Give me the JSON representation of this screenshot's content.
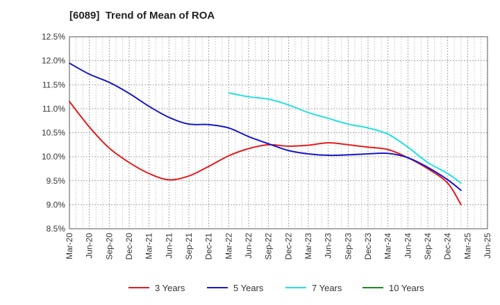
{
  "chart_data": {
    "type": "line",
    "title": "[6089]  Trend of Mean of ROA",
    "xlabel": "",
    "ylabel": "",
    "x_ticks": [
      "Mar-20",
      "Jun-20",
      "Sep-20",
      "Dec-20",
      "Mar-21",
      "Jun-21",
      "Sep-21",
      "Dec-21",
      "Mar-22",
      "Jun-22",
      "Sep-22",
      "Dec-22",
      "Mar-23",
      "Jun-23",
      "Sep-23",
      "Dec-23",
      "Mar-24",
      "Jun-24",
      "Sep-24",
      "Dec-24",
      "Mar-25",
      "Jun-25"
    ],
    "y_ticks": [
      "8.5%",
      "9.0%",
      "9.5%",
      "10.0%",
      "10.5%",
      "11.0%",
      "11.5%",
      "12.0%",
      "12.5%"
    ],
    "ylim": [
      8.5,
      12.5
    ],
    "grid": true,
    "legend_position": "bottom",
    "series": [
      {
        "name": "3 Years",
        "color": "#e31a1c",
        "points": [
          [
            0,
            11.15
          ],
          [
            1,
            10.62
          ],
          [
            2,
            10.18
          ],
          [
            3,
            9.88
          ],
          [
            4,
            9.65
          ],
          [
            5,
            9.52
          ],
          [
            6,
            9.6
          ],
          [
            7,
            9.8
          ],
          [
            8,
            10.02
          ],
          [
            9,
            10.17
          ],
          [
            10,
            10.25
          ],
          [
            11,
            10.22
          ],
          [
            12,
            10.24
          ],
          [
            13,
            10.29
          ],
          [
            14,
            10.25
          ],
          [
            15,
            10.2
          ],
          [
            16,
            10.15
          ],
          [
            17,
            9.98
          ],
          [
            18,
            9.75
          ],
          [
            19,
            9.45
          ],
          [
            19.67,
            9.0
          ]
        ]
      },
      {
        "name": "5 Years",
        "color": "#1515c8",
        "points": [
          [
            0,
            11.95
          ],
          [
            1,
            11.72
          ],
          [
            2,
            11.55
          ],
          [
            3,
            11.32
          ],
          [
            4,
            11.05
          ],
          [
            5,
            10.82
          ],
          [
            6,
            10.68
          ],
          [
            7,
            10.67
          ],
          [
            8,
            10.6
          ],
          [
            9,
            10.42
          ],
          [
            10,
            10.27
          ],
          [
            11,
            10.13
          ],
          [
            12,
            10.06
          ],
          [
            13,
            10.03
          ],
          [
            14,
            10.04
          ],
          [
            15,
            10.06
          ],
          [
            16,
            10.07
          ],
          [
            17,
            9.98
          ],
          [
            18,
            9.78
          ],
          [
            19,
            9.52
          ],
          [
            19.67,
            9.3
          ]
        ]
      },
      {
        "name": "7 Years",
        "color": "#22e0e0",
        "points": [
          [
            8,
            11.33
          ],
          [
            9,
            11.25
          ],
          [
            10,
            11.2
          ],
          [
            11,
            11.08
          ],
          [
            12,
            10.92
          ],
          [
            13,
            10.8
          ],
          [
            14,
            10.68
          ],
          [
            15,
            10.6
          ],
          [
            16,
            10.47
          ],
          [
            17,
            10.2
          ],
          [
            18,
            9.88
          ],
          [
            19,
            9.65
          ],
          [
            19.67,
            9.45
          ]
        ]
      },
      {
        "name": "10 Years",
        "color": "#1a8a1a",
        "points": []
      }
    ]
  }
}
